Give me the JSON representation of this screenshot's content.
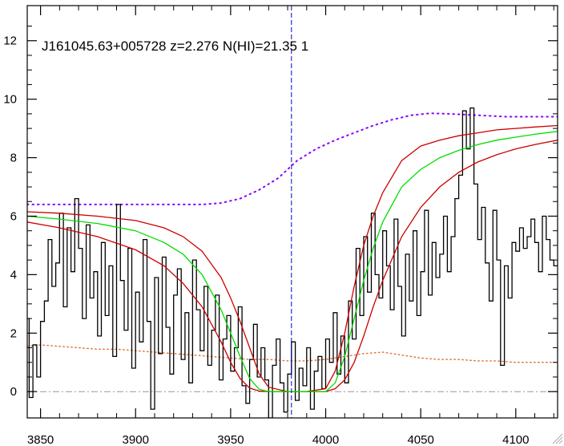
{
  "chart_data": {
    "type": "line",
    "title": "J161045.63+005728 z=2.276 N(HI)=21.35 1",
    "xlabel": "",
    "ylabel": "",
    "xlim": [
      3843,
      4122
    ],
    "ylim": [
      -0.9,
      13.2
    ],
    "x_ticks": [
      3850,
      3900,
      3950,
      4000,
      4050,
      4100
    ],
    "y_ticks": [
      0,
      2,
      4,
      6,
      8,
      10,
      12
    ],
    "grid": false,
    "vertical_line_x": 3982,
    "zero_line_y": 0,
    "colors": {
      "flux": "#000000",
      "model": "#00dd00",
      "model_bounds": "#cc0000",
      "continuum": "#8a00ff",
      "error": "#e07030",
      "vline": "#0000cc",
      "zero": "#999999"
    },
    "series": [
      {
        "role": "flux",
        "x": [
          3843,
          3845,
          3847,
          3849,
          3851,
          3853,
          3855,
          3857,
          3859,
          3861,
          3863,
          3865,
          3867,
          3869,
          3871,
          3873,
          3875,
          3877,
          3879,
          3881,
          3883,
          3885,
          3887,
          3889,
          3891,
          3893,
          3895,
          3897,
          3899,
          3901,
          3903,
          3905,
          3907,
          3909,
          3911,
          3913,
          3915,
          3917,
          3919,
          3921,
          3923,
          3925,
          3927,
          3929,
          3931,
          3933,
          3935,
          3937,
          3939,
          3941,
          3943,
          3945,
          3947,
          3949,
          3951,
          3953,
          3955,
          3957,
          3959,
          3961,
          3963,
          3965,
          3967,
          3969,
          3971,
          3973,
          3975,
          3977,
          3979,
          3981,
          3983,
          3985,
          3987,
          3989,
          3991,
          3993,
          3995,
          3997,
          3999,
          4001,
          4003,
          4005,
          4007,
          4009,
          4011,
          4013,
          4015,
          4017,
          4019,
          4021,
          4023,
          4025,
          4027,
          4029,
          4031,
          4033,
          4035,
          4037,
          4039,
          4041,
          4043,
          4045,
          4047,
          4049,
          4051,
          4053,
          4055,
          4057,
          4059,
          4061,
          4063,
          4065,
          4067,
          4069,
          4071,
          4073,
          4075,
          4077,
          4079,
          4081,
          4083,
          4085,
          4087,
          4089,
          4091,
          4093,
          4095,
          4097,
          4099,
          4101,
          4103,
          4105,
          4107,
          4109,
          4111,
          4113,
          4115,
          4117,
          4119,
          4121
        ],
        "y": [
          2.5,
          -0.2,
          1.6,
          0.5,
          2.4,
          3.1,
          5.2,
          3.6,
          4.4,
          6.1,
          2.9,
          5.6,
          4.1,
          6.6,
          4.9,
          2.5,
          5.7,
          3.2,
          4.1,
          1.9,
          5.1,
          2.6,
          4.3,
          1.2,
          6.4,
          3.8,
          2.1,
          4.9,
          0.8,
          3.4,
          1.7,
          5.2,
          2.4,
          -0.6,
          3.9,
          1.3,
          4.6,
          2.2,
          0.6,
          3.3,
          4.2,
          1.1,
          2.7,
          0.3,
          4.5,
          2.8,
          1.4,
          3.6,
          0.9,
          2.1,
          3.3,
          0.4,
          1.8,
          2.6,
          0.7,
          1.5,
          2.9,
          0.2,
          -0.4,
          1.1,
          2.3,
          0.5,
          1.5,
          0.4,
          -0.9,
          0.9,
          1.8,
          0.3,
          -0.7,
          0.6,
          1.7,
          -0.3,
          0.8,
          0.2,
          1.5,
          -0.6,
          0.7,
          1.2,
          0.1,
          1.8,
          1.0,
          2.7,
          0.6,
          1.9,
          0.3,
          3.1,
          1.8,
          4.9,
          2.6,
          5.3,
          3.4,
          6.1,
          4.0,
          3.2,
          5.5,
          4.3,
          2.8,
          5.9,
          3.6,
          1.9,
          4.7,
          3.1,
          5.5,
          2.6,
          4.1,
          6.2,
          3.3,
          5.1,
          3.9,
          4.7,
          6.0,
          4.1,
          5.3,
          6.6,
          7.4,
          9.6,
          8.3,
          9.7,
          7.1,
          5.2,
          6.3,
          4.4,
          3.1,
          6.2,
          4.5,
          0.9,
          4.3,
          3.2,
          5.1,
          4.8,
          5.6,
          4.9,
          5.3,
          5.9,
          5.1,
          4.1,
          6.0,
          5.2,
          4.5,
          4.3
        ]
      },
      {
        "role": "model",
        "x": [
          3843,
          3860,
          3880,
          3900,
          3915,
          3925,
          3935,
          3945,
          3950,
          3955,
          3960,
          3965,
          3970,
          3980,
          3990,
          4000,
          4005,
          4010,
          4015,
          4020,
          4025,
          4030,
          4040,
          4050,
          4060,
          4070,
          4080,
          4090,
          4100,
          4110,
          4122
        ],
        "y": [
          6.0,
          5.9,
          5.75,
          5.5,
          5.1,
          4.7,
          4.0,
          2.8,
          2.0,
          1.2,
          0.45,
          0.08,
          0.0,
          0.0,
          0.0,
          0.0,
          0.3,
          1.2,
          2.5,
          3.8,
          4.9,
          5.8,
          7.0,
          7.6,
          8.0,
          8.25,
          8.45,
          8.6,
          8.7,
          8.8,
          8.9
        ]
      },
      {
        "role": "model_upper",
        "x": [
          3843,
          3860,
          3880,
          3900,
          3915,
          3925,
          3935,
          3945,
          3950,
          3955,
          3960,
          3965,
          3970,
          3980,
          3990,
          4000,
          4005,
          4010,
          4015,
          4020,
          4025,
          4030,
          4040,
          4050,
          4060,
          4070,
          4080,
          4090,
          4100,
          4110,
          4122
        ],
        "y": [
          6.15,
          6.1,
          6.0,
          5.85,
          5.6,
          5.3,
          4.8,
          3.9,
          3.2,
          2.4,
          1.5,
          0.6,
          0.15,
          0.0,
          0.0,
          0.1,
          0.7,
          2.0,
          3.6,
          5.0,
          6.0,
          6.8,
          7.9,
          8.4,
          8.6,
          8.75,
          8.85,
          8.95,
          9.0,
          9.05,
          9.1
        ]
      },
      {
        "role": "model_lower",
        "x": [
          3843,
          3860,
          3880,
          3900,
          3915,
          3925,
          3935,
          3945,
          3950,
          3955,
          3960,
          3965,
          3970,
          3980,
          3990,
          4000,
          4005,
          4010,
          4015,
          4020,
          4025,
          4030,
          4040,
          4050,
          4060,
          4070,
          4080,
          4090,
          4100,
          4110,
          4122
        ],
        "y": [
          5.8,
          5.6,
          5.3,
          4.85,
          4.3,
          3.7,
          2.9,
          1.7,
          1.0,
          0.45,
          0.12,
          0.02,
          0.0,
          0.0,
          0.0,
          0.0,
          0.1,
          0.4,
          1.0,
          1.9,
          2.9,
          3.8,
          5.3,
          6.3,
          7.0,
          7.5,
          7.85,
          8.1,
          8.3,
          8.45,
          8.6
        ]
      },
      {
        "role": "continuum",
        "x": [
          3843,
          3860,
          3880,
          3900,
          3920,
          3935,
          3945,
          3955,
          3965,
          3975,
          3985,
          3995,
          4005,
          4015,
          4025,
          4035,
          4045,
          4055,
          4065,
          4080,
          4095,
          4110,
          4122
        ],
        "y": [
          6.4,
          6.4,
          6.4,
          6.4,
          6.4,
          6.4,
          6.45,
          6.6,
          6.9,
          7.3,
          7.9,
          8.3,
          8.6,
          8.85,
          9.1,
          9.3,
          9.45,
          9.52,
          9.5,
          9.45,
          9.4,
          9.4,
          9.4
        ]
      },
      {
        "role": "error",
        "x": [
          3843,
          3850,
          3860,
          3870,
          3880,
          3890,
          3900,
          3910,
          3920,
          3930,
          3940,
          3950,
          3960,
          3970,
          3980,
          3990,
          4000,
          4010,
          4020,
          4030,
          4040,
          4050,
          4060,
          4070,
          4080,
          4090,
          4100,
          4110,
          4122
        ],
        "y": [
          1.55,
          1.6,
          1.55,
          1.5,
          1.45,
          1.45,
          1.4,
          1.35,
          1.3,
          1.25,
          1.2,
          1.15,
          1.1,
          1.1,
          1.05,
          1.05,
          1.1,
          1.2,
          1.3,
          1.35,
          1.25,
          1.15,
          1.1,
          1.1,
          1.05,
          1.05,
          1.0,
          1.0,
          1.0
        ]
      }
    ]
  }
}
